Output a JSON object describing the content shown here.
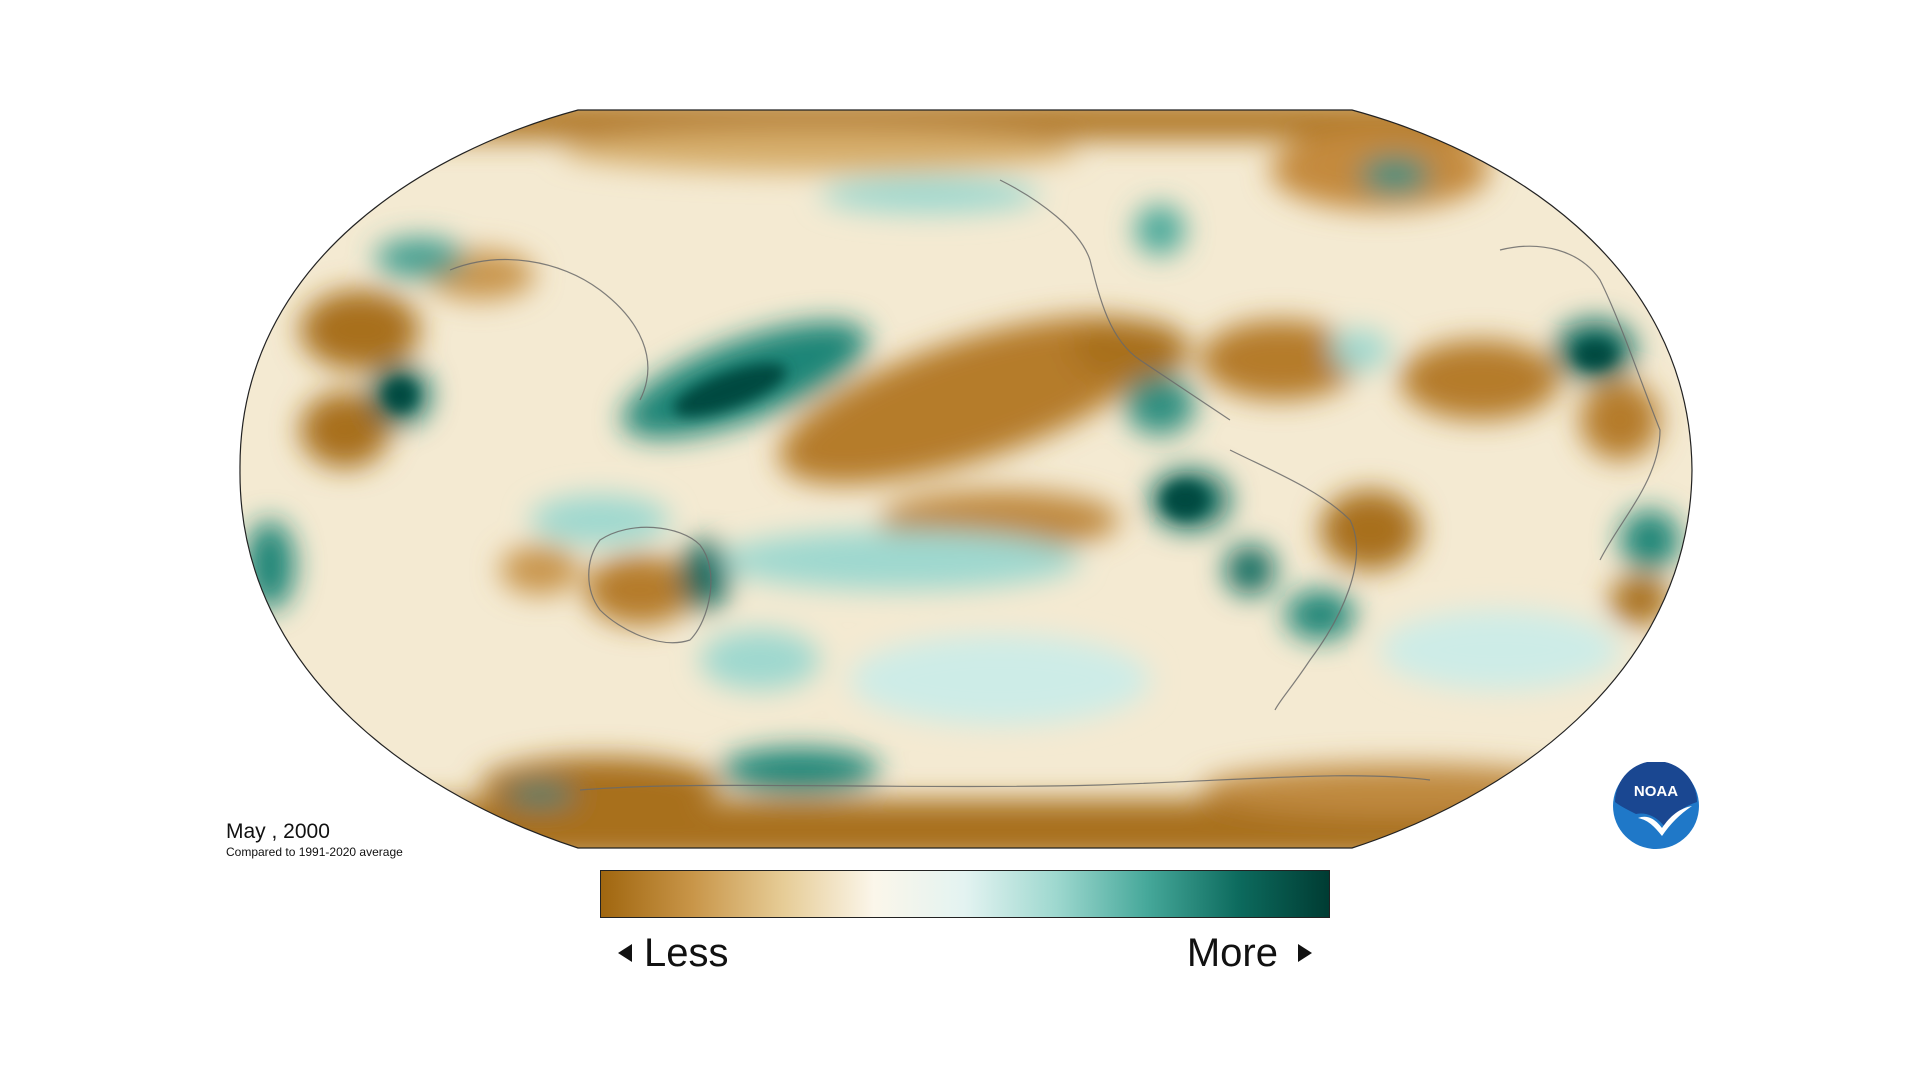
{
  "caption": {
    "date": "May , 2000",
    "subtitle": "Compared to 1991-2020 average"
  },
  "legend": {
    "less_label": "Less",
    "more_label": "More",
    "colors": [
      "#a0660f",
      "#c89548",
      "#e6cc96",
      "#fbf6ea",
      "#e3f3f1",
      "#9ed8cf",
      "#46a89a",
      "#0d6b5e",
      "#003c33"
    ]
  },
  "logo": {
    "text": "NOAA",
    "outer_color": "#1f78c8",
    "inner_color": "#1a4791"
  }
}
